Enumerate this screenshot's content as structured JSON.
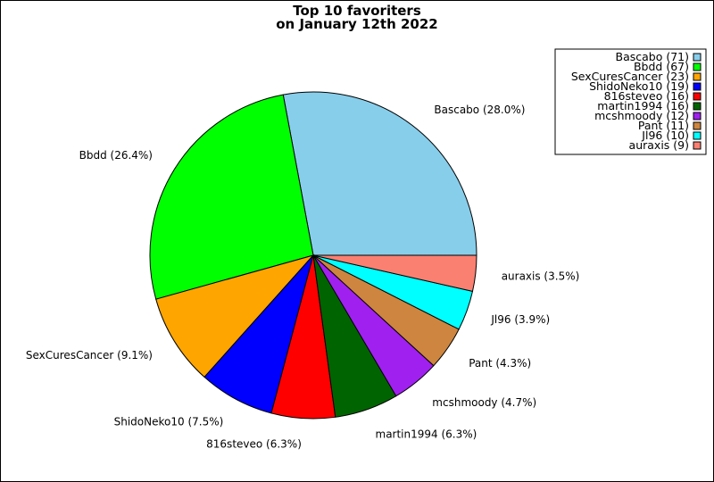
{
  "chart_data": {
    "type": "pie",
    "title": "Top 10 favoriters",
    "subtitle": "on January 12th 2022",
    "categories": [
      "Bascabo",
      "Bbdd",
      "SexCuresCancer",
      "ShidoNeko10",
      "816steveo",
      "martin1994",
      "mcshmoody",
      "Pant",
      "Jl96",
      "auraxis"
    ],
    "values": [
      71,
      67,
      23,
      19,
      16,
      16,
      12,
      11,
      10,
      9
    ],
    "slice_labels": [
      "Bascabo (28.0%)",
      "Bbdd (26.4%)",
      "SexCuresCancer (9.1%)",
      "ShidoNeko10 (7.5%)",
      "816steveo (6.3%)",
      "martin1994 (6.3%)",
      "mcshmoody (4.7%)",
      "Pant (4.3%)",
      "Jl96 (3.9%)",
      "auraxis (3.5%)"
    ],
    "legend_entries": [
      "Bascabo (71)",
      "Bbdd (67)",
      "SexCuresCancer (23)",
      "ShidoNeko10 (19)",
      "816steveo (16)",
      "martin1994 (16)",
      "mcshmoody (12)",
      "Pant (11)",
      "Jl96 (10)",
      "auraxis (9)"
    ],
    "colors": [
      "#87ceeb",
      "#00ff00",
      "#ffa500",
      "#0000ff",
      "#ff0000",
      "#006400",
      "#a020f0",
      "#cd853f",
      "#00ffff",
      "#fa8072"
    ],
    "start_angle_deg": 0,
    "direction": "counterclockwise",
    "legend_position": "top-right"
  }
}
